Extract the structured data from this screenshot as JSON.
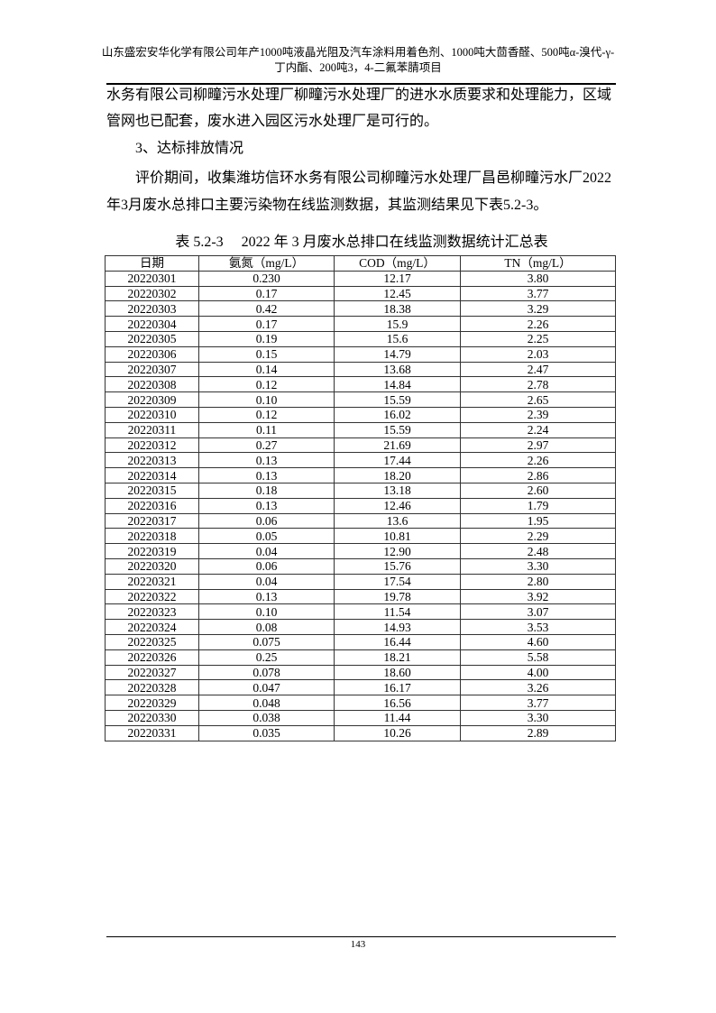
{
  "header": {
    "line1": "山东盛宏安华化学有限公司年产1000吨液晶光阻及汽车涂料用着色剂、1000吨大茴香醛、500吨α-溴代-γ-",
    "line2": "丁内酯、200吨3，4-二氟苯腈项目"
  },
  "body": {
    "para1_line1": "水务有限公司柳疃污水处理厂柳疃污水处理厂的进水水质要求和处理能力，区域",
    "para1_line2": "管网也已配套，废水进入园区污水处理厂是可行的。",
    "heading": "3、达标排放情况",
    "para2_line1": "评价期间，收集潍坊信环水务有限公司柳疃污水处理厂昌邑柳疃污水厂2022",
    "para2_line2": "年3月废水总排口主要污染物在线监测数据，其监测结果见下表5.2-3。"
  },
  "table": {
    "caption": "表 5.2-3     2022 年 3 月废水总排口在线监测数据统计汇总表",
    "headers": [
      "日期",
      "氨氮（mg/L）",
      "COD（mg/L）",
      "TN（mg/L）"
    ],
    "rows": [
      [
        "20220301",
        "0.230",
        "12.17",
        "3.80"
      ],
      [
        "20220302",
        "0.17",
        "12.45",
        "3.77"
      ],
      [
        "20220303",
        "0.42",
        "18.38",
        "3.29"
      ],
      [
        "20220304",
        "0.17",
        "15.9",
        "2.26"
      ],
      [
        "20220305",
        "0.19",
        "15.6",
        "2.25"
      ],
      [
        "20220306",
        "0.15",
        "14.79",
        "2.03"
      ],
      [
        "20220307",
        "0.14",
        "13.68",
        "2.47"
      ],
      [
        "20220308",
        "0.12",
        "14.84",
        "2.78"
      ],
      [
        "20220309",
        "0.10",
        "15.59",
        "2.65"
      ],
      [
        "20220310",
        "0.12",
        "16.02",
        "2.39"
      ],
      [
        "20220311",
        "0.11",
        "15.59",
        "2.24"
      ],
      [
        "20220312",
        "0.27",
        "21.69",
        "2.97"
      ],
      [
        "20220313",
        "0.13",
        "17.44",
        "2.26"
      ],
      [
        "20220314",
        "0.13",
        "18.20",
        "2.86"
      ],
      [
        "20220315",
        "0.18",
        "13.18",
        "2.60"
      ],
      [
        "20220316",
        "0.13",
        "12.46",
        "1.79"
      ],
      [
        "20220317",
        "0.06",
        "13.6",
        "1.95"
      ],
      [
        "20220318",
        "0.05",
        "10.81",
        "2.29"
      ],
      [
        "20220319",
        "0.04",
        "12.90",
        "2.48"
      ],
      [
        "20220320",
        "0.06",
        "15.76",
        "3.30"
      ],
      [
        "20220321",
        "0.04",
        "17.54",
        "2.80"
      ],
      [
        "20220322",
        "0.13",
        "19.78",
        "3.92"
      ],
      [
        "20220323",
        "0.10",
        "11.54",
        "3.07"
      ],
      [
        "20220324",
        "0.08",
        "14.93",
        "3.53"
      ],
      [
        "20220325",
        "0.075",
        "16.44",
        "4.60"
      ],
      [
        "20220326",
        "0.25",
        "18.21",
        "5.58"
      ],
      [
        "20220327",
        "0.078",
        "18.60",
        "4.00"
      ],
      [
        "20220328",
        "0.047",
        "16.17",
        "3.26"
      ],
      [
        "20220329",
        "0.048",
        "16.56",
        "3.77"
      ],
      [
        "20220330",
        "0.038",
        "11.44",
        "3.30"
      ],
      [
        "20220331",
        "0.035",
        "10.26",
        "2.89"
      ]
    ]
  },
  "footer": {
    "page_number": "143"
  }
}
